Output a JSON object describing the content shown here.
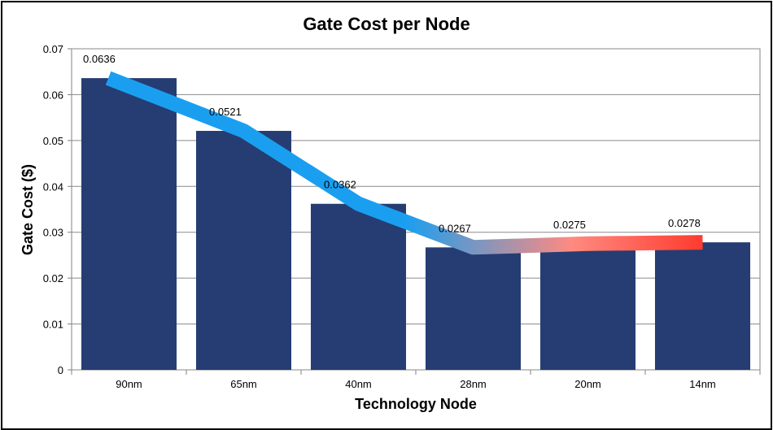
{
  "chart_data": {
    "type": "bar",
    "title": "Gate Cost per Node",
    "xlabel": "Technology Node",
    "ylabel": "Gate Cost ($)",
    "categories": [
      "90nm",
      "65nm",
      "40nm",
      "28nm",
      "20nm",
      "14nm"
    ],
    "values": [
      0.0636,
      0.0521,
      0.0362,
      0.0267,
      0.0275,
      0.0278
    ],
    "data_labels": [
      "0.0636",
      "0.0521",
      "0.0362",
      "0.0267",
      "0.0275",
      "0.0278"
    ],
    "ylim": [
      0,
      0.07
    ],
    "yticks": [
      0,
      0.01,
      0.02,
      0.03,
      0.04,
      0.05,
      0.06,
      0.07
    ],
    "ytick_labels": [
      "0",
      "0.01",
      "0.02",
      "0.03",
      "0.04",
      "0.05",
      "0.06",
      "0.07"
    ],
    "grid": true,
    "bar_color": "#253d73",
    "trend_overlay": {
      "type": "line",
      "values": [
        0.0636,
        0.0521,
        0.0362,
        0.0267,
        0.0275,
        0.0278
      ],
      "colors": {
        "start": "#1a9ff0",
        "end": "#ff3b2f"
      }
    }
  }
}
